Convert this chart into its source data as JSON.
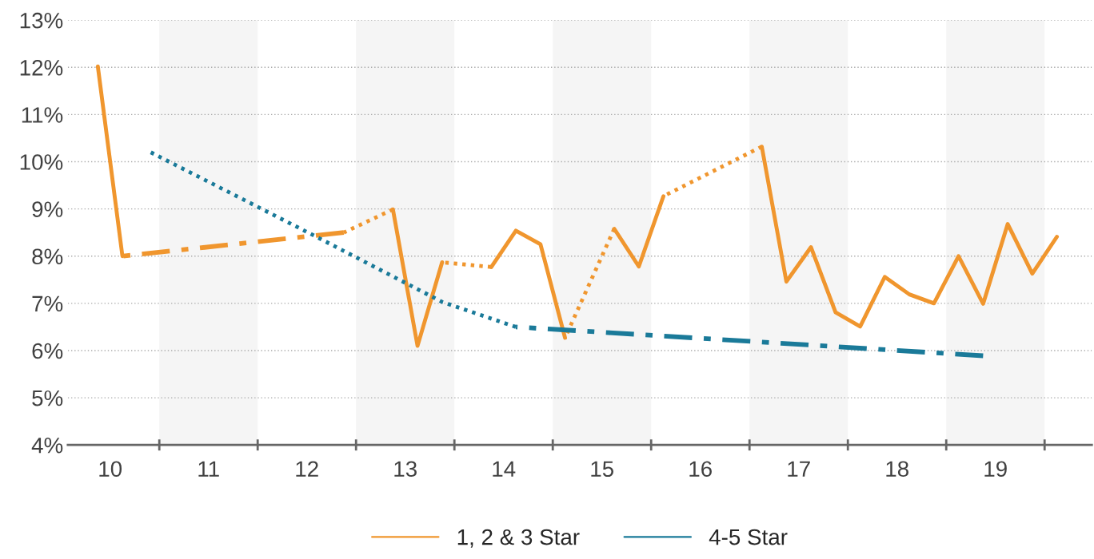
{
  "chart_data": {
    "type": "line",
    "series": [
      {
        "name": "1, 2 & 3 Star",
        "color": "#f0962e",
        "line_style": "solid",
        "x": [
          9.875,
          10.125
        ],
        "values": [
          12.02,
          8.0
        ]
      },
      {
        "color": "#f0962e",
        "line_style": "dashed",
        "x": [
          10.125,
          12.375
        ],
        "values": [
          8.0,
          8.5
        ]
      },
      {
        "color": "#f0962e",
        "line_style": "dotted",
        "x": [
          12.375,
          12.875
        ],
        "values": [
          8.5,
          8.99
        ]
      },
      {
        "color": "#f0962e",
        "line_style": "solid",
        "x": [
          12.875,
          13.125,
          13.375
        ],
        "values": [
          8.99,
          6.1,
          7.87
        ]
      },
      {
        "color": "#f0962e",
        "line_style": "dotted",
        "x": [
          13.375,
          13.875
        ],
        "values": [
          7.87,
          7.77
        ]
      },
      {
        "color": "#f0962e",
        "line_style": "solid",
        "x": [
          13.875,
          14.125,
          14.375,
          14.625
        ],
        "values": [
          7.77,
          8.54,
          8.25,
          6.27
        ]
      },
      {
        "color": "#f0962e",
        "line_style": "dotted",
        "x": [
          14.625,
          15.125
        ],
        "values": [
          6.27,
          8.58
        ]
      },
      {
        "color": "#f0962e",
        "line_style": "solid",
        "x": [
          15.125,
          15.375,
          15.625
        ],
        "values": [
          8.58,
          7.78,
          9.27
        ]
      },
      {
        "color": "#f0962e",
        "line_style": "dotted",
        "x": [
          15.625,
          16.625
        ],
        "values": [
          9.27,
          10.32
        ]
      },
      {
        "color": "#f0962e",
        "line_style": "solid",
        "x": [
          16.625,
          16.875,
          17.125,
          17.375,
          17.625,
          17.875,
          18.125,
          18.375,
          18.625,
          18.875,
          19.125,
          19.375,
          19.625
        ],
        "values": [
          10.32,
          7.46,
          8.19,
          6.81,
          6.51,
          7.56,
          7.19,
          7.0,
          8.0,
          6.99,
          8.68,
          7.63,
          8.41
        ]
      },
      {
        "name": "4-5 Star",
        "color": "#1a7a99",
        "line_style": "dotted",
        "x": [
          10.375,
          12.125,
          13.125,
          13.375,
          14.125
        ],
        "values": [
          10.24,
          8.38,
          7.3,
          7.03,
          6.5
        ]
      },
      {
        "color": "#1a7a99",
        "line_style": "dashed",
        "x": [
          14.125,
          16.625,
          18.875
        ],
        "values": [
          6.5,
          6.18,
          5.89
        ]
      }
    ],
    "xlim": [
      9.57,
      19.98
    ],
    "xticks": [
      10,
      {
        "value": 10.5,
        "label": null
      },
      11,
      {
        "value": 11.5,
        "label": null
      },
      12,
      {
        "value": 12.5,
        "label": null
      },
      13,
      {
        "value": 13.5,
        "label": null
      },
      14,
      {
        "value": 14.5,
        "label": null
      },
      15,
      {
        "value": 15.5,
        "label": null
      },
      16,
      {
        "value": 16.5,
        "label": null
      },
      17,
      {
        "value": 17.5,
        "label": null
      },
      18,
      {
        "value": 18.5,
        "label": null
      },
      19,
      {
        "value": 19.5,
        "label": null
      }
    ],
    "ylim": [
      4,
      13
    ],
    "yticks": [
      {
        "value": 4,
        "label": "4%"
      },
      {
        "value": 5,
        "label": "5%"
      },
      {
        "value": 6,
        "label": "6%"
      },
      {
        "value": 7,
        "label": "7%"
      },
      {
        "value": 8,
        "label": "8%"
      },
      {
        "value": 9,
        "label": "9%"
      },
      {
        "value": 10,
        "label": "10%"
      },
      {
        "value": 11,
        "label": "11%"
      },
      {
        "value": 12,
        "label": "12%"
      },
      {
        "value": 13,
        "label": "13%"
      }
    ],
    "bands": [
      {
        "axis": "x",
        "from": 10.5,
        "to": 11.5,
        "color": "#f5f5f5"
      },
      {
        "axis": "x",
        "from": 12.5,
        "to": 13.5,
        "color": "#f5f5f5"
      },
      {
        "axis": "x",
        "from": 14.5,
        "to": 15.5,
        "color": "#f5f5f5"
      },
      {
        "axis": "x",
        "from": 16.5,
        "to": 17.5,
        "color": "#f5f5f5"
      },
      {
        "axis": "x",
        "from": 18.5,
        "to": 19.5,
        "color": "#f5f5f5"
      }
    ],
    "grid": "y",
    "legend": "bottom",
    "marker": "none"
  }
}
